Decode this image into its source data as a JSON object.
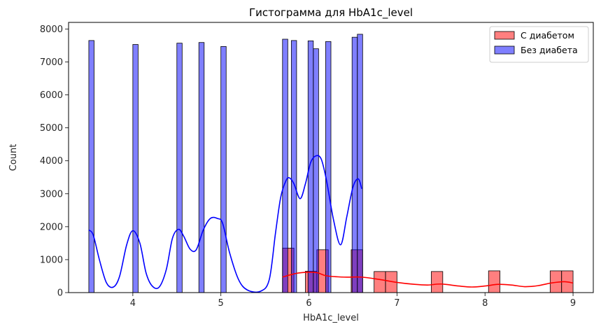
{
  "chart_data": {
    "type": "bar",
    "title": "Гистограмма для HbA1c_level",
    "xlabel": "HbA1c_level",
    "ylabel": "Count",
    "xlim": [
      3.27,
      9.23
    ],
    "ylim": [
      0,
      8200
    ],
    "xticks": [
      "4",
      "5",
      "6",
      "7",
      "8",
      "9"
    ],
    "yticks": [
      "0",
      "1000",
      "2000",
      "3000",
      "4000",
      "5000",
      "6000",
      "7000",
      "8000"
    ],
    "legend_position": "top-right",
    "series": [
      {
        "name": "С диабетом",
        "color": "#ff0000",
        "bars": [
          {
            "x0": 5.7,
            "x1": 5.83,
            "value": 1350
          },
          {
            "x0": 5.96,
            "x1": 6.09,
            "value": 650
          },
          {
            "x0": 6.09,
            "x1": 6.22,
            "value": 1300
          },
          {
            "x0": 6.48,
            "x1": 6.61,
            "value": 1300
          },
          {
            "x0": 6.74,
            "x1": 6.87,
            "value": 640
          },
          {
            "x0": 6.87,
            "x1": 7.0,
            "value": 640
          },
          {
            "x0": 7.39,
            "x1": 7.52,
            "value": 640
          },
          {
            "x0": 8.04,
            "x1": 8.17,
            "value": 660
          },
          {
            "x0": 8.74,
            "x1": 8.87,
            "value": 660
          },
          {
            "x0": 8.87,
            "x1": 9.0,
            "value": 660
          }
        ],
        "kde": {
          "x": [
            5.7,
            5.85,
            6.0,
            6.1,
            6.2,
            6.4,
            6.6,
            6.8,
            7.0,
            7.2,
            7.35,
            7.5,
            7.7,
            7.85,
            8.0,
            8.15,
            8.3,
            8.45,
            8.6,
            8.75,
            8.9,
            9.0
          ],
          "y": [
            470,
            580,
            620,
            600,
            510,
            470,
            470,
            400,
            310,
            250,
            230,
            260,
            200,
            170,
            200,
            250,
            230,
            180,
            210,
            290,
            330,
            290
          ]
        }
      },
      {
        "name": "Без диабета",
        "color": "#0000ff",
        "bars": [
          {
            "x0": 3.5,
            "x1": 3.56,
            "value": 7650
          },
          {
            "x0": 4.0,
            "x1": 4.06,
            "value": 7530
          },
          {
            "x0": 4.5,
            "x1": 4.56,
            "value": 7570
          },
          {
            "x0": 4.75,
            "x1": 4.81,
            "value": 7590
          },
          {
            "x0": 5.0,
            "x1": 5.06,
            "value": 7470
          },
          {
            "x0": 5.7,
            "x1": 5.76,
            "value": 7690
          },
          {
            "x0": 5.8,
            "x1": 5.86,
            "value": 7650
          },
          {
            "x0": 5.99,
            "x1": 6.05,
            "value": 7640
          },
          {
            "x0": 6.05,
            "x1": 6.11,
            "value": 7400
          },
          {
            "x0": 6.19,
            "x1": 6.25,
            "value": 7620
          },
          {
            "x0": 6.49,
            "x1": 6.55,
            "value": 7750
          },
          {
            "x0": 6.55,
            "x1": 6.61,
            "value": 7840
          }
        ],
        "kde": {
          "x": [
            3.5,
            3.55,
            3.62,
            3.7,
            3.78,
            3.85,
            3.93,
            4.0,
            4.08,
            4.15,
            4.22,
            4.3,
            4.38,
            4.45,
            4.52,
            4.58,
            4.65,
            4.72,
            4.8,
            4.88,
            4.96,
            5.02,
            5.1,
            5.2,
            5.3,
            5.45,
            5.55,
            5.62,
            5.68,
            5.74,
            5.78,
            5.83,
            5.9,
            5.96,
            6.02,
            6.08,
            6.14,
            6.2,
            6.28,
            6.36,
            6.43,
            6.5,
            6.56,
            6.6
          ],
          "y": [
            1900,
            1750,
            1000,
            300,
            170,
            500,
            1450,
            1880,
            1500,
            600,
            200,
            170,
            700,
            1650,
            1920,
            1700,
            1320,
            1300,
            1900,
            2250,
            2250,
            2100,
            1200,
            400,
            80,
            40,
            400,
            1800,
            2900,
            3400,
            3480,
            3300,
            2850,
            3300,
            3950,
            4150,
            4050,
            3400,
            2200,
            1450,
            2300,
            3200,
            3450,
            3150
          ]
        }
      }
    ]
  }
}
